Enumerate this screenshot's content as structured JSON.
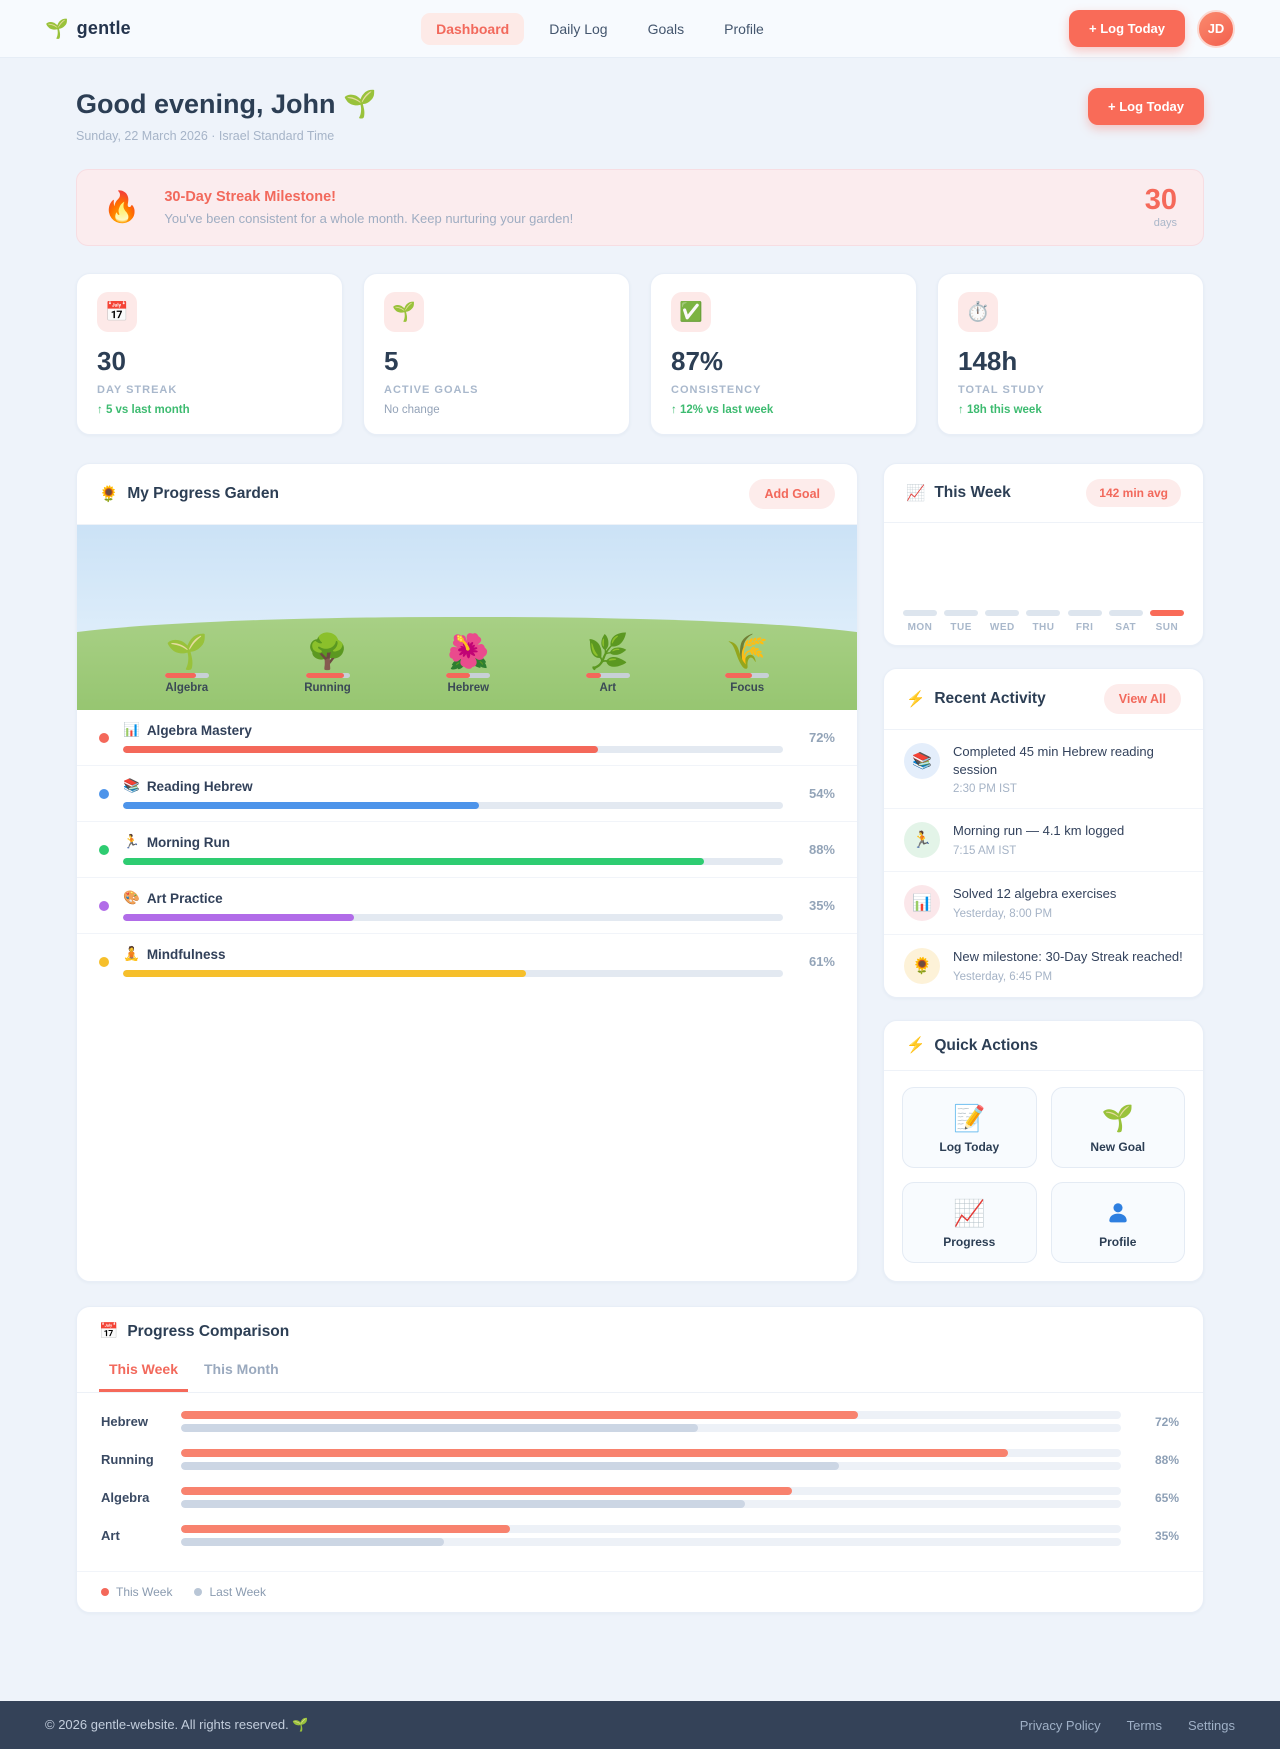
{
  "colors": {
    "accent": "#f96b58",
    "accent_soft": "#fdeceb",
    "success": "#3dbb70",
    "muted": "#a3b2c6",
    "footer_bg": "#344258"
  },
  "brand": {
    "logo_icon": "🌱",
    "name": "gentle"
  },
  "nav": {
    "items": [
      {
        "label": "Dashboard",
        "active": true
      },
      {
        "label": "Daily Log",
        "active": false
      },
      {
        "label": "Goals",
        "active": false
      },
      {
        "label": "Profile",
        "active": false
      }
    ],
    "log_today_label": "+ Log Today",
    "avatar_initials": "JD"
  },
  "header": {
    "greeting": "Good evening, John 🌱",
    "date_line": "Sunday, 22 March 2026 · Israel Standard Time",
    "log_today_label": "+ Log Today"
  },
  "milestone_banner": {
    "icon": "🔥",
    "title": "30-Day Streak Milestone!",
    "message": "You've been consistent for a whole month. Keep nurturing your garden!",
    "count": "30",
    "unit": "days"
  },
  "stats": [
    {
      "icon": "📅",
      "value": "30",
      "label": "DAY STREAK",
      "delta": "↑ 5 vs last month",
      "delta_type": "up"
    },
    {
      "icon": "🌱",
      "value": "5",
      "label": "ACTIVE GOALS",
      "delta": "No change",
      "delta_type": "neutral"
    },
    {
      "icon": "✅",
      "value": "87%",
      "label": "CONSISTENCY",
      "delta": "↑ 12% vs last week",
      "delta_type": "up"
    },
    {
      "icon": "⏱️",
      "value": "148h",
      "label": "TOTAL STUDY",
      "delta": "↑ 18h this week",
      "delta_type": "up"
    }
  ],
  "garden": {
    "title_icon": "🌻",
    "title": "My Progress Garden",
    "add_goal_label": "Add Goal",
    "plants": [
      {
        "emoji": "🌱",
        "label": "Algebra",
        "percent": 72
      },
      {
        "emoji": "🌳",
        "label": "Running",
        "percent": 88
      },
      {
        "emoji": "🌺",
        "label": "Hebrew",
        "percent": 54
      },
      {
        "emoji": "🌿",
        "label": "Art",
        "percent": 35
      },
      {
        "emoji": "🌾",
        "label": "Focus",
        "percent": 61
      }
    ],
    "goals": [
      {
        "emoji": "📊",
        "name": "Algebra Mastery",
        "percent": 72,
        "percent_label": "72%",
        "color": "#f4685a"
      },
      {
        "emoji": "📚",
        "name": "Reading Hebrew",
        "percent": 54,
        "percent_label": "54%",
        "color": "#4d94ea"
      },
      {
        "emoji": "🏃",
        "name": "Morning Run",
        "percent": 88,
        "percent_label": "88%",
        "color": "#2ecc71"
      },
      {
        "emoji": "🎨",
        "name": "Art Practice",
        "percent": 35,
        "percent_label": "35%",
        "color": "#b16ce8"
      },
      {
        "emoji": "🧘",
        "name": "Mindfulness",
        "percent": 61,
        "percent_label": "61%",
        "color": "#f6bf2b"
      }
    ]
  },
  "week_chart": {
    "title_icon": "📈",
    "title": "This Week",
    "badge": "142 min avg",
    "days": [
      "MON",
      "TUE",
      "WED",
      "THU",
      "FRI",
      "SAT",
      "SUN"
    ],
    "highlight_day": "SUN"
  },
  "activity": {
    "title_icon": "⚡",
    "title": "Recent Activity",
    "view_all_label": "View All",
    "items": [
      {
        "icon": "📚",
        "icon_bg": "#e4eefb",
        "text": "Completed 45 min Hebrew reading session",
        "time": "2:30 PM IST"
      },
      {
        "icon": "🏃",
        "icon_bg": "#e3f4e8",
        "text": "Morning run — 4.1 km logged",
        "time": "7:15 AM IST"
      },
      {
        "icon": "📊",
        "icon_bg": "#fbe7ea",
        "text": "Solved 12 algebra exercises",
        "time": "Yesterday, 8:00 PM"
      },
      {
        "icon": "🌻",
        "icon_bg": "#fdf2d8",
        "text": "New milestone: 30-Day Streak reached!",
        "time": "Yesterday, 6:45 PM"
      }
    ]
  },
  "quick_actions": {
    "title_icon": "⚡",
    "title": "Quick Actions",
    "actions": [
      {
        "icon": "📝",
        "label": "Log Today"
      },
      {
        "icon": "🌱",
        "label": "New Goal"
      },
      {
        "icon": "📈",
        "label": "Progress"
      },
      {
        "icon": "👤",
        "label": "Profile"
      }
    ]
  },
  "comparison": {
    "title_icon": "📅",
    "title": "Progress Comparison",
    "tabs": [
      {
        "label": "This Week",
        "active": true
      },
      {
        "label": "This Month",
        "active": false
      }
    ],
    "rows": [
      {
        "label": "Hebrew",
        "this_week": 72,
        "last_week": 55,
        "percent_label": "72%"
      },
      {
        "label": "Running",
        "this_week": 88,
        "last_week": 70,
        "percent_label": "88%"
      },
      {
        "label": "Algebra",
        "this_week": 65,
        "last_week": 60,
        "percent_label": "65%"
      },
      {
        "label": "Art",
        "this_week": 35,
        "last_week": 28,
        "percent_label": "35%"
      }
    ],
    "legend": [
      {
        "label": "This Week",
        "color": "#f4685a"
      },
      {
        "label": "Last Week",
        "color": "#b9c6d6"
      }
    ]
  },
  "footer": {
    "copyright": "© 2026 gentle-website. All rights reserved. 🌱",
    "links": [
      "Privacy Policy",
      "Terms",
      "Settings"
    ]
  }
}
